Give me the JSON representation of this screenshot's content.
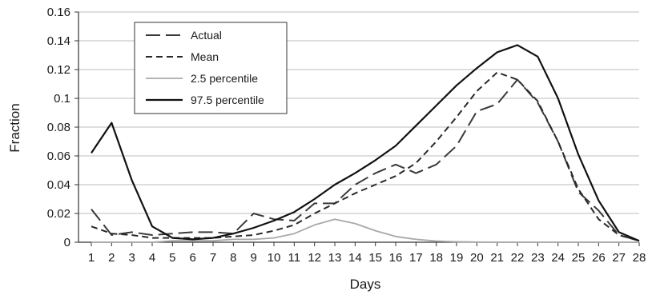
{
  "chart_data": {
    "type": "line",
    "title": "",
    "xlabel": "Days",
    "ylabel": "Fraction",
    "x": [
      1,
      2,
      3,
      4,
      5,
      6,
      7,
      8,
      9,
      10,
      11,
      12,
      13,
      14,
      15,
      16,
      17,
      18,
      19,
      20,
      21,
      22,
      23,
      24,
      25,
      26,
      27,
      28
    ],
    "xlim": [
      1,
      28
    ],
    "ylim": [
      0,
      0.16
    ],
    "yticks": [
      0,
      0.02,
      0.04,
      0.06,
      0.08,
      0.1,
      0.12,
      0.14,
      0.16
    ],
    "ytick_labels": [
      "0",
      "0.02",
      "0.04",
      "0.06",
      "0.08",
      "0.1",
      "0.12",
      "0.14",
      "0.16"
    ],
    "grid": "horizontal",
    "legend_position": "top-left",
    "series": [
      {
        "name": "Actual",
        "style": "long-dash",
        "color": "#3a3a3a",
        "values": [
          0.023,
          0.005,
          0.007,
          0.005,
          0.006,
          0.007,
          0.007,
          0.006,
          0.02,
          0.016,
          0.015,
          0.027,
          0.027,
          0.04,
          0.048,
          0.054,
          0.048,
          0.054,
          0.067,
          0.091,
          0.096,
          0.113,
          0.097,
          0.07,
          0.035,
          0.022,
          0.005,
          0.001
        ]
      },
      {
        "name": "Mean",
        "style": "short-dash",
        "color": "#2a2a2a",
        "values": [
          0.011,
          0.006,
          0.005,
          0.003,
          0.003,
          0.003,
          0.003,
          0.004,
          0.005,
          0.008,
          0.012,
          0.02,
          0.027,
          0.034,
          0.04,
          0.046,
          0.055,
          0.07,
          0.087,
          0.105,
          0.118,
          0.113,
          0.098,
          0.07,
          0.037,
          0.016,
          0.005,
          0.001
        ]
      },
      {
        "name": "2.5 percentile",
        "style": "solid",
        "color": "#a8a8a8",
        "values": [
          0,
          0,
          0,
          0,
          0.001,
          0.001,
          0.001,
          0.002,
          0.002,
          0.003,
          0.006,
          0.012,
          0.016,
          0.013,
          0.008,
          0.004,
          0.002,
          0.0008,
          0.0003,
          0.0001,
          0,
          0,
          0,
          0,
          0,
          0,
          0,
          0
        ]
      },
      {
        "name": "97.5 percentile",
        "style": "solid",
        "color": "#111111",
        "values": [
          0.062,
          0.083,
          0.043,
          0.011,
          0.003,
          0.002,
          0.003,
          0.006,
          0.01,
          0.015,
          0.021,
          0.03,
          0.04,
          0.048,
          0.057,
          0.067,
          0.081,
          0.095,
          0.109,
          0.121,
          0.132,
          0.137,
          0.129,
          0.1,
          0.061,
          0.029,
          0.007,
          0.001
        ]
      }
    ]
  }
}
